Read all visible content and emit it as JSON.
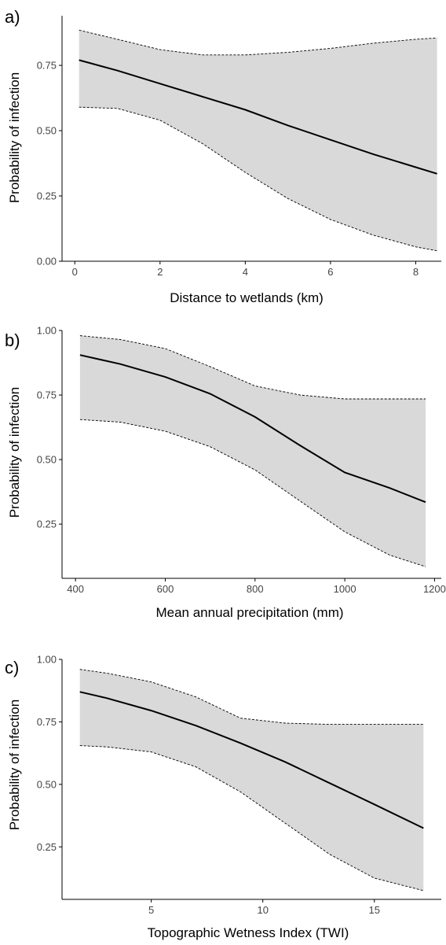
{
  "chart_data": [
    {
      "panel_label": "a)",
      "type": "line",
      "xlabel": "Distance to wetlands (km)",
      "ylabel": "Probability of infection",
      "xlim": [
        -0.3,
        8.6
      ],
      "ylim": [
        0.0,
        0.94
      ],
      "xticks": [
        0,
        2,
        4,
        6,
        8
      ],
      "xtick_labels": [
        "0",
        "2",
        "4",
        "6",
        "8"
      ],
      "yticks": [
        0.0,
        0.25,
        0.5,
        0.75
      ],
      "ytick_labels": [
        "0.00",
        "0.25",
        "0.50",
        "0.75"
      ],
      "grid": false,
      "x": [
        0.1,
        1.0,
        2.0,
        3.0,
        4.0,
        5.0,
        6.0,
        7.0,
        8.0,
        8.5
      ],
      "fit": [
        0.77,
        0.73,
        0.68,
        0.63,
        0.58,
        0.52,
        0.465,
        0.41,
        0.36,
        0.335
      ],
      "upper": [
        0.885,
        0.85,
        0.81,
        0.79,
        0.79,
        0.8,
        0.815,
        0.835,
        0.85,
        0.855
      ],
      "lower": [
        0.59,
        0.585,
        0.54,
        0.45,
        0.34,
        0.24,
        0.16,
        0.1,
        0.055,
        0.04
      ]
    },
    {
      "panel_label": "b)",
      "type": "line",
      "xlabel": "Mean annual precipitation (mm)",
      "ylabel": "Probability of infection",
      "xlim": [
        370,
        1215
      ],
      "ylim": [
        0.04,
        1.0
      ],
      "xticks": [
        400,
        600,
        800,
        1000,
        1200
      ],
      "xtick_labels": [
        "400",
        "600",
        "800",
        "1000",
        "1200"
      ],
      "yticks": [
        0.25,
        0.5,
        0.75,
        1.0
      ],
      "ytick_labels": [
        "0.25",
        "0.50",
        "0.75",
        "1.00"
      ],
      "grid": false,
      "x": [
        410,
        500,
        600,
        700,
        800,
        900,
        1000,
        1100,
        1180
      ],
      "fit": [
        0.905,
        0.87,
        0.82,
        0.755,
        0.665,
        0.555,
        0.45,
        0.39,
        0.335
      ],
      "upper": [
        0.98,
        0.965,
        0.93,
        0.86,
        0.785,
        0.75,
        0.735,
        0.735,
        0.735
      ],
      "lower": [
        0.655,
        0.645,
        0.61,
        0.55,
        0.46,
        0.34,
        0.22,
        0.13,
        0.085
      ]
    },
    {
      "panel_label": "c)",
      "type": "line",
      "xlabel": "Topographic Wetness Index (TWI)",
      "ylabel": "Probability of infection",
      "xlim": [
        1.0,
        18.0
      ],
      "ylim": [
        0.04,
        1.0
      ],
      "xticks": [
        5,
        10,
        15
      ],
      "xtick_labels": [
        "5",
        "10",
        "15"
      ],
      "yticks": [
        0.25,
        0.5,
        0.75,
        1.0
      ],
      "ytick_labels": [
        "0.25",
        "0.50",
        "0.75",
        "1.00"
      ],
      "grid": false,
      "x": [
        1.8,
        3.0,
        5.0,
        7.0,
        9.0,
        11.0,
        13.0,
        15.0,
        17.2
      ],
      "fit": [
        0.87,
        0.845,
        0.795,
        0.735,
        0.665,
        0.59,
        0.505,
        0.42,
        0.325
      ],
      "upper": [
        0.96,
        0.945,
        0.91,
        0.85,
        0.765,
        0.745,
        0.74,
        0.74,
        0.74
      ],
      "lower": [
        0.655,
        0.65,
        0.63,
        0.57,
        0.47,
        0.345,
        0.22,
        0.125,
        0.075
      ]
    }
  ]
}
